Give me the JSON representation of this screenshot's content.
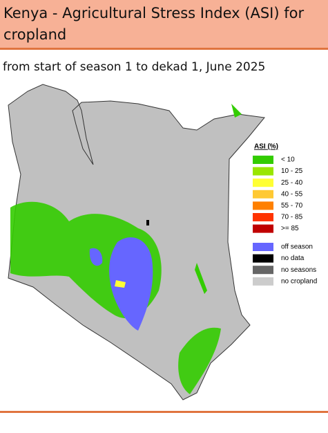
{
  "header": {
    "title": "Kenya - Agricultural Stress Index (ASI) for cropland"
  },
  "subtitle": "from start of season 1 to dekad 1, June 2025",
  "legend": {
    "title": "ASI (%)",
    "stress_classes": [
      {
        "label": "< 10",
        "color": "#33cc00"
      },
      {
        "label": "10 - 25",
        "color": "#99e600"
      },
      {
        "label": "25 - 40",
        "color": "#ffff33"
      },
      {
        "label": "40 - 55",
        "color": "#ffc933"
      },
      {
        "label": "55 - 70",
        "color": "#ff8000"
      },
      {
        "label": "70 - 85",
        "color": "#ff3300"
      },
      {
        "label": ">= 85",
        "color": "#c00000"
      }
    ],
    "other_classes": [
      {
        "label": "off season",
        "color": "#6666ff"
      },
      {
        "label": "no data",
        "color": "#000000"
      },
      {
        "label": "no seasons",
        "color": "#666666"
      },
      {
        "label": "no cropland",
        "color": "#cccccc"
      }
    ]
  }
}
